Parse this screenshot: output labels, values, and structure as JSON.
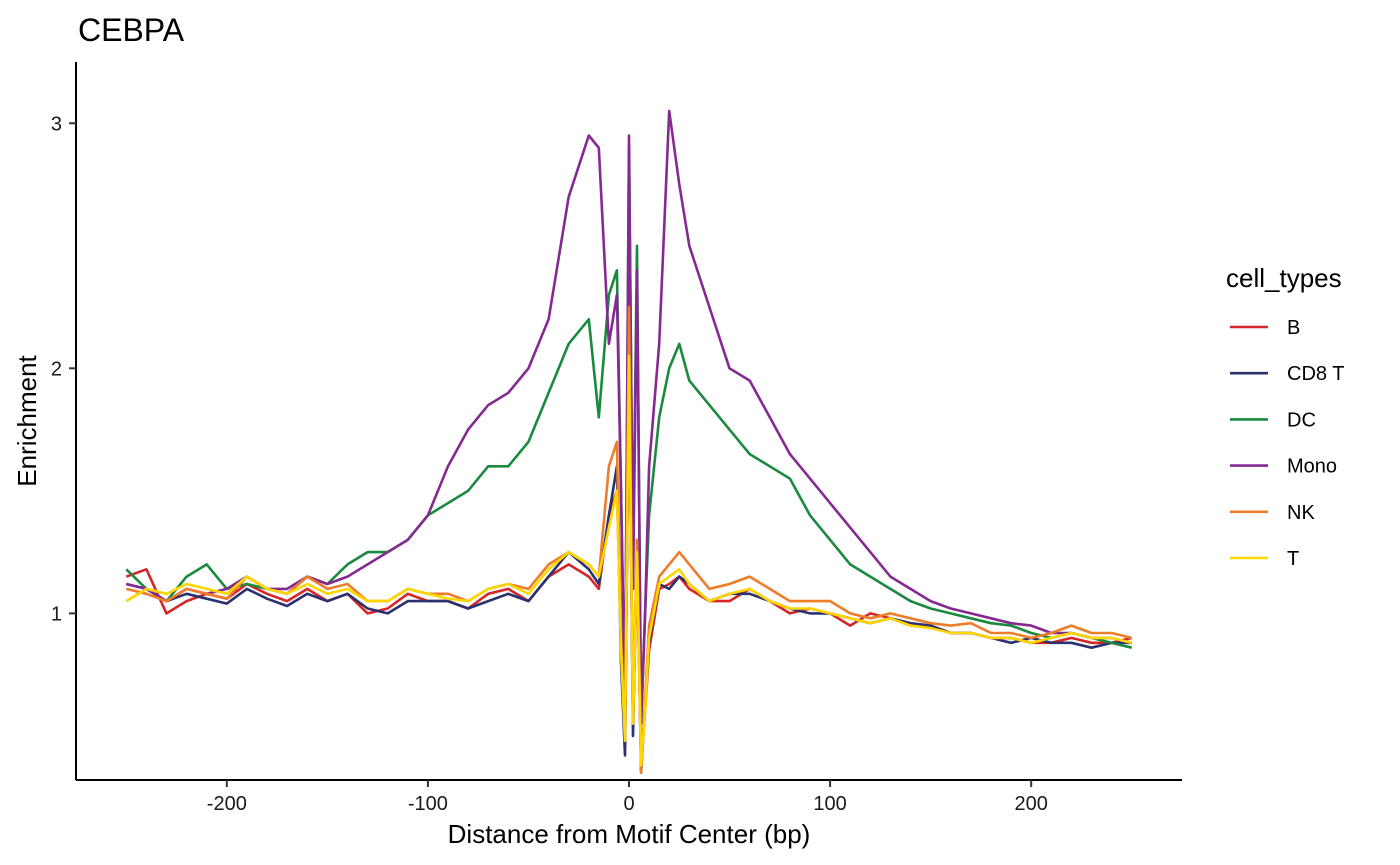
{
  "chart_data": {
    "type": "line",
    "title": "CEBPA",
    "xlabel": "Distance from Motif Center (bp)",
    "ylabel": "Enrichment",
    "xlim": [
      -275,
      275
    ],
    "ylim": [
      0.32,
      3.25
    ],
    "xticks": [
      -200,
      -100,
      0,
      100,
      200
    ],
    "xtick_labels": [
      "-200",
      "-100",
      "0",
      "100",
      "200"
    ],
    "yticks": [
      1,
      2,
      3
    ],
    "ytick_labels": [
      "1",
      "2",
      "3"
    ],
    "grid": false,
    "legend": {
      "title": "cell_types",
      "placement": "right"
    },
    "x": [
      -250,
      -240,
      -230,
      -220,
      -210,
      -200,
      -190,
      -180,
      -170,
      -160,
      -150,
      -140,
      -130,
      -120,
      -110,
      -100,
      -90,
      -80,
      -70,
      -60,
      -50,
      -40,
      -30,
      -20,
      -15,
      -10,
      -6,
      -4,
      -2,
      0,
      2,
      4,
      6,
      8,
      10,
      15,
      20,
      25,
      30,
      40,
      50,
      60,
      70,
      80,
      90,
      100,
      110,
      120,
      130,
      140,
      150,
      160,
      170,
      180,
      190,
      200,
      210,
      220,
      230,
      240,
      250
    ],
    "series": [
      {
        "name": "B",
        "color": "#D62728",
        "values": [
          1.15,
          1.18,
          1.0,
          1.05,
          1.08,
          1.06,
          1.12,
          1.08,
          1.05,
          1.1,
          1.05,
          1.08,
          1.0,
          1.02,
          1.08,
          1.05,
          1.05,
          1.02,
          1.08,
          1.1,
          1.05,
          1.15,
          1.2,
          1.15,
          1.1,
          1.4,
          1.5,
          0.9,
          0.45,
          2.0,
          0.55,
          1.2,
          0.4,
          0.6,
          0.85,
          1.1,
          1.12,
          1.15,
          1.1,
          1.05,
          1.05,
          1.1,
          1.05,
          1.0,
          1.02,
          1.0,
          0.95,
          1.0,
          0.98,
          0.95,
          0.95,
          0.92,
          0.92,
          0.9,
          0.9,
          0.88,
          0.88,
          0.9,
          0.88,
          0.88,
          0.9
        ]
      },
      {
        "name": "CD8 T",
        "color": "#2C3170",
        "values": [
          1.12,
          1.1,
          1.05,
          1.08,
          1.06,
          1.04,
          1.1,
          1.06,
          1.03,
          1.08,
          1.05,
          1.08,
          1.02,
          1.0,
          1.05,
          1.05,
          1.05,
          1.02,
          1.05,
          1.08,
          1.05,
          1.15,
          1.25,
          1.18,
          1.12,
          1.4,
          1.6,
          0.8,
          0.42,
          2.1,
          0.5,
          1.3,
          0.35,
          0.62,
          0.88,
          1.12,
          1.1,
          1.15,
          1.12,
          1.05,
          1.08,
          1.08,
          1.05,
          1.02,
          1.0,
          1.0,
          0.98,
          0.96,
          0.98,
          0.96,
          0.95,
          0.92,
          0.92,
          0.9,
          0.88,
          0.9,
          0.88,
          0.88,
          0.86,
          0.88,
          0.88
        ]
      },
      {
        "name": "DC",
        "color": "#1A8A3E",
        "values": [
          1.18,
          1.1,
          1.05,
          1.15,
          1.2,
          1.1,
          1.12,
          1.1,
          1.08,
          1.15,
          1.12,
          1.2,
          1.25,
          1.25,
          1.3,
          1.4,
          1.45,
          1.5,
          1.6,
          1.6,
          1.7,
          1.9,
          2.1,
          2.2,
          1.8,
          2.3,
          2.4,
          1.5,
          0.6,
          2.9,
          1.2,
          2.5,
          0.55,
          1.0,
          1.4,
          1.8,
          2.0,
          2.1,
          1.95,
          1.85,
          1.75,
          1.65,
          1.6,
          1.55,
          1.4,
          1.3,
          1.2,
          1.15,
          1.1,
          1.05,
          1.02,
          1.0,
          0.98,
          0.96,
          0.95,
          0.92,
          0.9,
          0.92,
          0.9,
          0.88,
          0.86
        ]
      },
      {
        "name": "Mono",
        "color": "#842A91",
        "values": [
          1.12,
          1.1,
          1.05,
          1.1,
          1.08,
          1.1,
          1.15,
          1.1,
          1.1,
          1.15,
          1.12,
          1.15,
          1.2,
          1.25,
          1.3,
          1.4,
          1.6,
          1.75,
          1.85,
          1.9,
          2.0,
          2.2,
          2.7,
          2.95,
          2.9,
          2.1,
          2.3,
          1.5,
          0.6,
          2.95,
          1.1,
          2.4,
          0.55,
          1.0,
          1.6,
          2.1,
          3.05,
          2.75,
          2.5,
          2.25,
          2.0,
          1.95,
          1.8,
          1.65,
          1.55,
          1.45,
          1.35,
          1.25,
          1.15,
          1.1,
          1.05,
          1.02,
          1.0,
          0.98,
          0.96,
          0.95,
          0.92,
          0.92,
          0.9,
          0.9,
          0.88
        ]
      },
      {
        "name": "NK",
        "color": "#EE7D2A",
        "values": [
          1.1,
          1.08,
          1.05,
          1.1,
          1.08,
          1.06,
          1.15,
          1.1,
          1.08,
          1.15,
          1.1,
          1.12,
          1.05,
          1.05,
          1.1,
          1.08,
          1.08,
          1.05,
          1.1,
          1.12,
          1.1,
          1.2,
          1.25,
          1.2,
          1.15,
          1.6,
          1.7,
          0.9,
          0.5,
          2.25,
          0.55,
          1.3,
          0.35,
          0.65,
          0.95,
          1.15,
          1.2,
          1.25,
          1.2,
          1.1,
          1.12,
          1.15,
          1.1,
          1.05,
          1.05,
          1.05,
          1.0,
          0.98,
          1.0,
          0.98,
          0.96,
          0.95,
          0.96,
          0.92,
          0.92,
          0.9,
          0.92,
          0.95,
          0.92,
          0.92,
          0.9
        ]
      },
      {
        "name": "T",
        "color": "#FFD700",
        "values": [
          1.05,
          1.1,
          1.08,
          1.12,
          1.1,
          1.08,
          1.15,
          1.1,
          1.08,
          1.12,
          1.08,
          1.1,
          1.05,
          1.05,
          1.1,
          1.08,
          1.06,
          1.05,
          1.1,
          1.12,
          1.08,
          1.18,
          1.25,
          1.2,
          1.15,
          1.35,
          1.5,
          0.85,
          0.48,
          2.05,
          0.55,
          1.25,
          0.38,
          0.6,
          0.9,
          1.12,
          1.15,
          1.18,
          1.12,
          1.05,
          1.08,
          1.1,
          1.05,
          1.02,
          1.02,
          1.0,
          0.98,
          0.96,
          0.98,
          0.95,
          0.94,
          0.92,
          0.92,
          0.9,
          0.9,
          0.88,
          0.9,
          0.92,
          0.9,
          0.9,
          0.88
        ]
      }
    ]
  }
}
